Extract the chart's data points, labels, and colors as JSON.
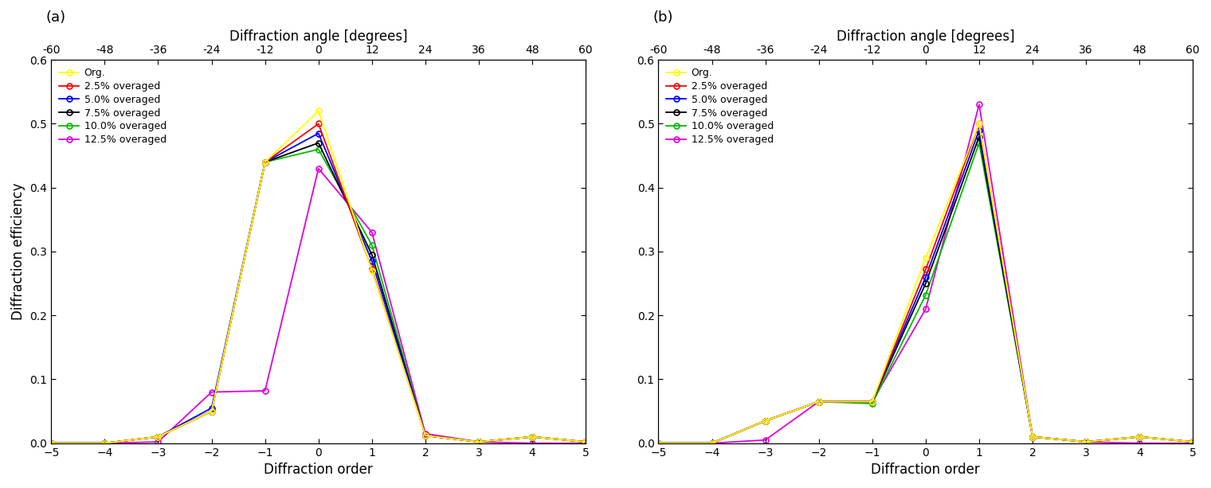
{
  "orders": [
    -5,
    -4,
    -3,
    -2,
    -1,
    0,
    1,
    2,
    3,
    4,
    5
  ],
  "angle_ticks": [
    -60,
    -48,
    -36,
    -24,
    -12,
    0,
    12,
    24,
    36,
    48,
    60
  ],
  "panel_a": {
    "label": "(a)",
    "series": [
      {
        "name": "Org.",
        "color": "#ffff00",
        "zorder": 6,
        "values": [
          0.0,
          0.0,
          0.01,
          0.05,
          0.44,
          0.52,
          0.27,
          0.012,
          0.002,
          0.01,
          0.002
        ]
      },
      {
        "name": "2.5% overaged",
        "color": "#ff0000",
        "zorder": 5,
        "values": [
          0.0,
          0.0,
          0.01,
          0.05,
          0.44,
          0.5,
          0.272,
          0.012,
          0.002,
          0.01,
          0.002
        ]
      },
      {
        "name": "5.0% overaged",
        "color": "#0000ff",
        "zorder": 4,
        "values": [
          0.0,
          0.0,
          0.01,
          0.055,
          0.44,
          0.485,
          0.285,
          0.012,
          0.002,
          0.01,
          0.002
        ]
      },
      {
        "name": "7.5% overaged",
        "color": "#000000",
        "zorder": 3,
        "values": [
          0.0,
          0.0,
          0.01,
          0.05,
          0.44,
          0.47,
          0.295,
          0.012,
          0.002,
          0.01,
          0.002
        ]
      },
      {
        "name": "10.0% overaged",
        "color": "#00bb00",
        "zorder": 2,
        "values": [
          0.0,
          0.0,
          0.01,
          0.05,
          0.44,
          0.46,
          0.31,
          0.012,
          0.002,
          0.01,
          0.002
        ]
      },
      {
        "name": "12.5% overaged",
        "color": "#dd00dd",
        "zorder": 1,
        "values": [
          0.0,
          0.0,
          0.002,
          0.08,
          0.082,
          0.43,
          0.33,
          0.015,
          0.002,
          0.0,
          0.0
        ]
      }
    ]
  },
  "panel_b": {
    "label": "(b)",
    "series": [
      {
        "name": "Org.",
        "color": "#ffff00",
        "zorder": 6,
        "values": [
          0.0,
          0.0,
          0.035,
          0.065,
          0.065,
          0.29,
          0.5,
          0.01,
          0.002,
          0.01,
          0.002
        ]
      },
      {
        "name": "2.5% overaged",
        "color": "#ff0000",
        "zorder": 5,
        "values": [
          0.0,
          0.0,
          0.035,
          0.065,
          0.065,
          0.272,
          0.5,
          0.01,
          0.002,
          0.01,
          0.002
        ]
      },
      {
        "name": "5.0% overaged",
        "color": "#0000ff",
        "zorder": 4,
        "values": [
          0.0,
          0.0,
          0.035,
          0.065,
          0.065,
          0.26,
          0.49,
          0.01,
          0.002,
          0.01,
          0.002
        ]
      },
      {
        "name": "7.5% overaged",
        "color": "#000000",
        "zorder": 3,
        "values": [
          0.0,
          0.0,
          0.035,
          0.065,
          0.065,
          0.25,
          0.48,
          0.01,
          0.002,
          0.01,
          0.002
        ]
      },
      {
        "name": "10.0% overaged",
        "color": "#00bb00",
        "zorder": 2,
        "values": [
          0.0,
          0.0,
          0.035,
          0.065,
          0.062,
          0.232,
          0.47,
          0.01,
          0.002,
          0.01,
          0.002
        ]
      },
      {
        "name": "12.5% overaged",
        "color": "#dd00dd",
        "zorder": 1,
        "values": [
          0.0,
          0.0,
          0.005,
          0.065,
          0.065,
          0.21,
          0.53,
          0.01,
          0.002,
          0.0,
          0.0
        ]
      }
    ]
  },
  "xlabel": "Diffraction order",
  "ylabel": "Diffraction efficiency",
  "top_xlabel": "Diffraction angle [degrees]",
  "ylim": [
    0.0,
    0.6
  ],
  "yticks": [
    0.0,
    0.1,
    0.2,
    0.3,
    0.4,
    0.5,
    0.6
  ],
  "xlim": [
    -5,
    5
  ],
  "xticks": [
    -5,
    -4,
    -3,
    -2,
    -1,
    0,
    1,
    2,
    3,
    4,
    5
  ]
}
